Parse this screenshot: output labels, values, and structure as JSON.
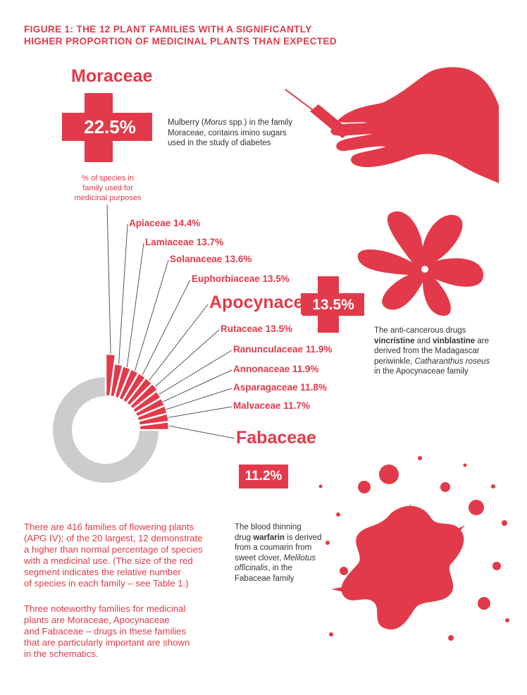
{
  "figure_title_line1": "FIGURE 1: THE 12 PLANT FAMILIES WITH A SIGNIFICANTLY",
  "figure_title_line2": "HIGHER PROPORTION OF MEDICINAL PLANTS THAN EXPECTED",
  "moraceae": {
    "name": "Moraceae",
    "pct": "22.5%",
    "note_line1": "% of species in",
    "note_line2": "family used for",
    "note_line3": "medicinal purposes",
    "caption_line1_pre": "Mulberry (",
    "caption_line1_em": "Morus",
    "caption_line1_post": " spp.) in the family",
    "caption_line2": "Moraceae, contains imino sugars",
    "caption_line3": "used in the study of diabetes",
    "icon": "syringe-hand-icon"
  },
  "apocynaceae": {
    "name": "Apocynaceae",
    "pct": "13.5%",
    "caption_line1": "The anti-cancerous drugs",
    "caption_bold1": "vincristine",
    "caption_and": " and ",
    "caption_bold2": "vinblastine",
    "caption_are": " are",
    "caption_line3": "derived from the Madagascar",
    "caption_line4_pre": "periwinkle, ",
    "caption_line4_em": "Catharanthus roseus",
    "caption_line5": "in the Apocynaceae family",
    "icon": "periwinkle-flower-icon"
  },
  "fabaceae": {
    "name": "Fabaceae",
    "pct": "11.2%",
    "caption_line1": "The blood thinning",
    "caption_line2_pre": "drug ",
    "caption_line2_bold": "warfarin",
    "caption_line2_post": " is derived",
    "caption_line3": "from a coumarin from",
    "caption_line4_pre": "sweet clover, ",
    "caption_line4_em": "Melilotus",
    "caption_line5_em": "officinalis",
    "caption_line5_post": ", in the",
    "caption_line6": "Fabaceae family",
    "icon": "blood-splatter-icon"
  },
  "body_para1": [
    "There are 416 families of flowering plants",
    "(APG IV); of the 20 largest, 12 demonstrate",
    "a higher than normal percentage of species",
    "with a medicinal use. (The size of the red",
    "segment indicates the relative number",
    "of species in each family – see Table 1.)"
  ],
  "body_para2": [
    "Three noteworthy families for medicinal",
    "plants are Moraceae, Apocynaceae",
    "and Fabaceae – drugs in these families",
    "that are particularly important are shown",
    "in the schematics."
  ],
  "chart_data": {
    "type": "pie",
    "categories": [
      "Moraceae",
      "Apiaceae",
      "Lamiaceae",
      "Solanaceae",
      "Euphorbiaceae",
      "Apocynaceae",
      "Rutaceae",
      "Ranunculaceae",
      "Annonaceae",
      "Asparagaceae",
      "Malvaceae",
      "Fabaceae"
    ],
    "values": [
      22.5,
      14.4,
      13.7,
      13.6,
      13.5,
      13.5,
      13.5,
      11.9,
      11.9,
      11.8,
      11.7,
      11.2
    ],
    "labels": [
      "Moraceae",
      "Apiaceae 14.4%",
      "Lamiaceae 13.7%",
      "Solanaceae 13.6%",
      "Euphorbiaceae 13.5%",
      "Apocynaceae",
      "Rutaceae 13.5%",
      "Ranunculaceae 11.9%",
      "Annonaceae 11.9%",
      "Asparagaceae 11.8%",
      "Malvaceae 11.7%",
      "Fabaceae"
    ],
    "colors": {
      "highlight": "#e23a4a",
      "rest": "#cccccc"
    }
  }
}
